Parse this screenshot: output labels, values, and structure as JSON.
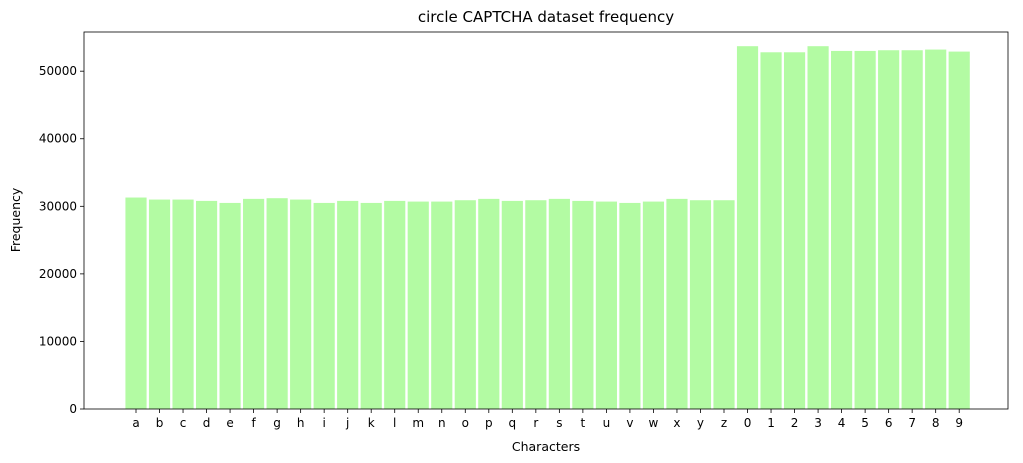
{
  "chart_data": {
    "type": "bar",
    "title": "circle CAPTCHA dataset frequency",
    "xlabel": "Characters",
    "ylabel": "Frequency",
    "ylim": [
      0,
      55800
    ],
    "yticks": [
      0,
      10000,
      20000,
      30000,
      40000,
      50000
    ],
    "grid": false,
    "bar_color": "#b3fba3",
    "categories": [
      "a",
      "b",
      "c",
      "d",
      "e",
      "f",
      "g",
      "h",
      "i",
      "j",
      "k",
      "l",
      "m",
      "n",
      "o",
      "p",
      "q",
      "r",
      "s",
      "t",
      "u",
      "v",
      "w",
      "x",
      "y",
      "z",
      "0",
      "1",
      "2",
      "3",
      "4",
      "5",
      "6",
      "7",
      "8",
      "9"
    ],
    "values": [
      31300,
      31000,
      31000,
      30800,
      30500,
      31100,
      31200,
      31000,
      30500,
      30800,
      30500,
      30800,
      30700,
      30700,
      30900,
      31100,
      30800,
      30900,
      31100,
      30800,
      30700,
      30500,
      30700,
      31100,
      30900,
      30900,
      53700,
      52800,
      52800,
      53700,
      53000,
      53000,
      53100,
      53100,
      53200,
      52900
    ]
  }
}
